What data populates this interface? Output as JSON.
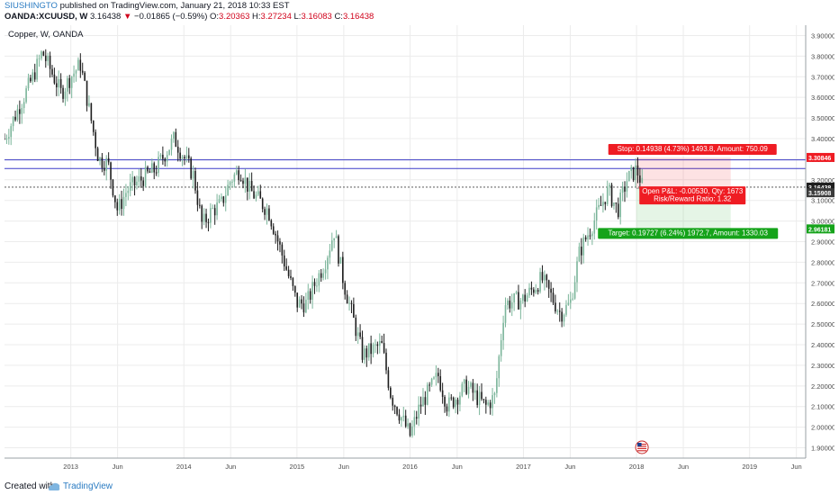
{
  "header": {
    "author": "SIUSHINGTO",
    "published_text": "published on TradingView.com, January 21, 2018 10:33 EST",
    "symbol": "OANDA:XCUUSD, W",
    "last": "3.16438",
    "change": "−0.01865 (−0.59%)",
    "o_label": "O:",
    "o_value": "3.20363",
    "h_label": "H:",
    "h_value": "3.27234",
    "l_label": "L:",
    "l_value": "3.16083",
    "c_label": "C:",
    "c_value": "3.16438"
  },
  "chart_title": "Copper, W, OANDA",
  "footer": {
    "created_with": "Created with",
    "brand": "TradingView"
  },
  "colors": {
    "up": "#7bb59a",
    "down": "#1e1e1e",
    "red": "#ef1c23",
    "green": "#15a31a",
    "blue_line": "#3d3dc8",
    "grid": "#ececec",
    "axis_text": "#4a4a4a"
  },
  "chart_data": {
    "type": "candlestick",
    "interval": "W",
    "y_range": [
      1.85,
      3.95
    ],
    "y_ticks": [
      "3.90000",
      "3.80000",
      "3.70000",
      "3.60000",
      "3.50000",
      "3.40000",
      "3.30000",
      "3.20000",
      "3.10000",
      "3.00000",
      "2.90000",
      "2.80000",
      "2.70000",
      "2.60000",
      "2.50000",
      "2.40000",
      "2.30000",
      "2.20000",
      "2.10000",
      "2.00000",
      "1.90000"
    ],
    "x_labels": [
      {
        "label": "2013",
        "date": "2013-01"
      },
      {
        "label": "Jun",
        "date": "2013-06"
      },
      {
        "label": "2014",
        "date": "2014-01"
      },
      {
        "label": "Jun",
        "date": "2014-06"
      },
      {
        "label": "2015",
        "date": "2015-01"
      },
      {
        "label": "Jun",
        "date": "2015-06"
      },
      {
        "label": "2016",
        "date": "2016-01"
      },
      {
        "label": "Jun",
        "date": "2016-06"
      },
      {
        "label": "2017",
        "date": "2017-01"
      },
      {
        "label": "Jun",
        "date": "2017-06"
      },
      {
        "label": "2018",
        "date": "2018-01"
      },
      {
        "label": "Jun",
        "date": "2018-06"
      },
      {
        "label": "2019",
        "date": "2019-01"
      },
      {
        "label": "Jun",
        "date": "2019-06"
      }
    ],
    "x_start": "2012-06",
    "x_end": "2019-07",
    "price_path": [
      [
        "2012-06",
        3.4
      ],
      [
        "2012-09",
        3.7
      ],
      [
        "2012-10",
        3.82
      ],
      [
        "2012-12",
        3.62
      ],
      [
        "2013-01",
        3.7
      ],
      [
        "2013-02",
        3.76
      ],
      [
        "2013-04",
        3.3
      ],
      [
        "2013-05",
        3.28
      ],
      [
        "2013-06",
        3.05
      ],
      [
        "2013-07",
        3.15
      ],
      [
        "2013-09",
        3.22
      ],
      [
        "2013-10",
        3.25
      ],
      [
        "2013-12",
        3.4
      ],
      [
        "2014-02",
        3.22
      ],
      [
        "2014-03",
        2.98
      ],
      [
        "2014-04",
        3.05
      ],
      [
        "2014-05",
        3.08
      ],
      [
        "2014-06",
        3.2
      ],
      [
        "2014-07",
        3.25
      ],
      [
        "2014-08",
        3.15
      ],
      [
        "2014-10",
        3.05
      ],
      [
        "2014-11",
        2.9
      ],
      [
        "2015-01",
        2.6
      ],
      [
        "2015-02",
        2.6
      ],
      [
        "2015-03",
        2.7
      ],
      [
        "2015-04",
        2.8
      ],
      [
        "2015-05",
        2.95
      ],
      [
        "2015-06",
        2.7
      ],
      [
        "2015-08",
        2.35
      ],
      [
        "2015-10",
        2.4
      ],
      [
        "2015-11",
        2.15
      ],
      [
        "2016-01",
        1.96
      ],
      [
        "2016-02",
        2.1
      ],
      [
        "2016-04",
        2.25
      ],
      [
        "2016-05",
        2.1
      ],
      [
        "2016-07",
        2.2
      ],
      [
        "2016-09",
        2.1
      ],
      [
        "2016-10",
        2.15
      ],
      [
        "2016-11",
        2.6
      ],
      [
        "2017-01",
        2.62
      ],
      [
        "2017-03",
        2.72
      ],
      [
        "2017-05",
        2.55
      ],
      [
        "2017-06",
        2.6
      ],
      [
        "2017-07",
        2.85
      ],
      [
        "2017-09",
        3.05
      ],
      [
        "2017-10",
        3.15
      ],
      [
        "2017-11",
        3.05
      ],
      [
        "2017-12",
        3.2
      ],
      [
        "2018-01",
        3.25
      ],
      [
        "2018-01-14",
        3.2
      ],
      [
        "2018-01-21",
        3.16
      ]
    ],
    "last_price": {
      "value": 3.16438,
      "label": "3.16438"
    },
    "stop_price": {
      "value": 3.30846,
      "label": "3.30846"
    },
    "entry_price": {
      "value": 3.15908,
      "label": "3.15908"
    },
    "target_price": {
      "value": 2.96181,
      "label": "2.96181"
    },
    "entry_date": "2017-12-31",
    "position_end": "2018-11",
    "horizontal_lines": [
      {
        "value": 3.297,
        "color": "#3d3dc8"
      },
      {
        "value": 3.255,
        "color": "#3d3dc8"
      }
    ],
    "position_labels": {
      "stop": "Stop: 0.14938 (4.73%) 1493.8, Amount: 750.09",
      "open": "Open P&L: -0.00530, Qty: 1673",
      "risk": "Risk/Reward Ratio: 1.32",
      "target": "Target: 0.19727 (6.24%) 1972.7, Amount: 1330.03"
    },
    "events": [
      {
        "date": "2018-01",
        "type": "us-flag"
      }
    ]
  }
}
